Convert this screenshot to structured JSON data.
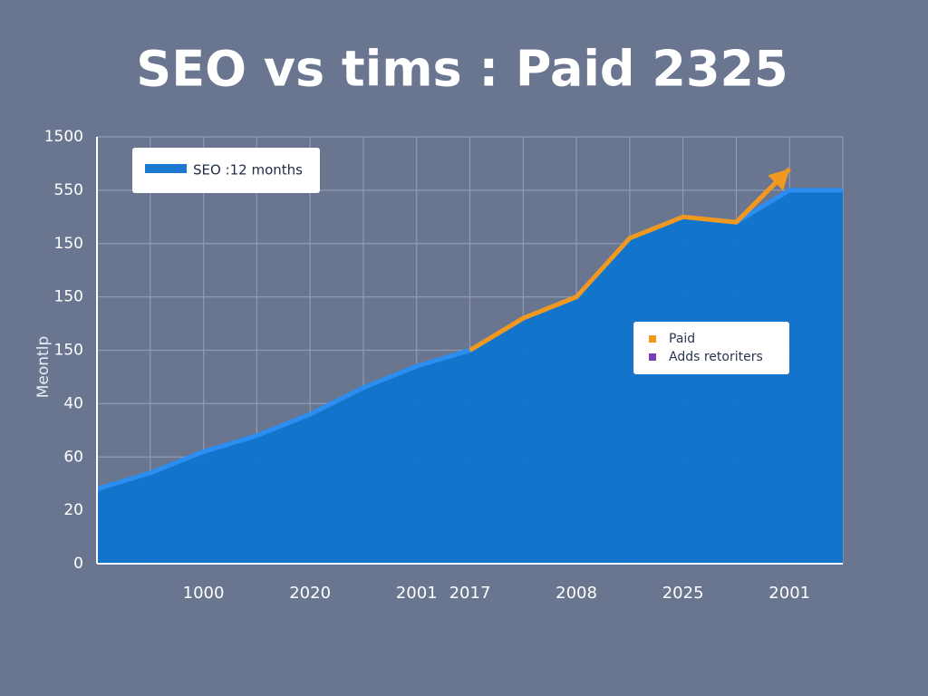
{
  "chart_data": {
    "type": "area",
    "title": "SEO vs tims : Paid 2325",
    "ylabel": "Meontlp",
    "categories": [
      null,
      null,
      "1000",
      null,
      "2020",
      null,
      "2001",
      "2017",
      null,
      "2008",
      null,
      "2025",
      null,
      "2001",
      null
    ],
    "series": [
      {
        "name": "SEO :12 months",
        "color": "#1a78d0",
        "values": [
          1.4,
          1.7,
          2.1,
          2.4,
          2.8,
          3.3,
          3.7,
          4.0,
          4.6,
          5.0,
          6.1,
          6.5,
          6.4,
          7.0,
          7.0
        ]
      },
      {
        "name": "Paid",
        "color": "#f0981f",
        "values": [
          null,
          null,
          null,
          null,
          null,
          null,
          null,
          4.0,
          4.6,
          5.0,
          6.1,
          6.5,
          6.4,
          7.4,
          null
        ]
      },
      {
        "name": "Adds retoriters",
        "color": "#7a3fb0",
        "values": [
          null,
          null,
          null,
          null,
          null,
          null,
          null,
          null,
          null,
          null,
          null,
          null,
          null,
          null,
          null
        ]
      }
    ],
    "ylim": [
      0,
      8
    ],
    "yticks": [
      0,
      {
        "value": 1,
        "label": "20"
      },
      {
        "value": 2,
        "label": "60"
      },
      {
        "value": 3,
        "label": "40"
      },
      {
        "value": 4,
        "label": "150"
      },
      {
        "value": 5,
        "label": "150"
      },
      {
        "value": 6,
        "label": "150"
      },
      {
        "value": 7,
        "label": "550"
      },
      {
        "value": 8,
        "label": "1500"
      }
    ],
    "grid": true
  }
}
